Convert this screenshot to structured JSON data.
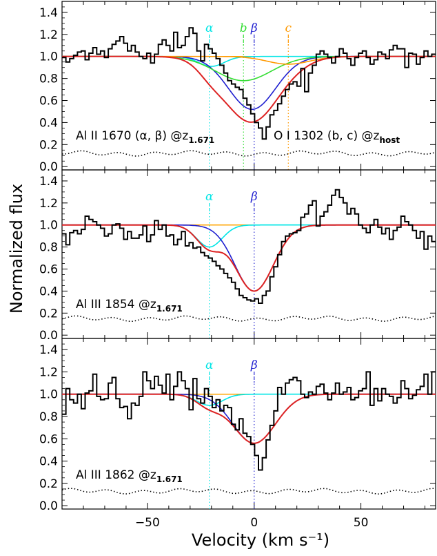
{
  "chart_data": {
    "type": "line",
    "xlabel": "Velocity (km s⁻¹)",
    "ylabel": "Normalized flux",
    "xlim": [
      -90,
      85
    ],
    "x_ticks": [
      -50,
      0,
      50
    ],
    "y_ticks": [
      0.0,
      0.2,
      0.4,
      0.6,
      0.8,
      1.0,
      1.2,
      1.4
    ],
    "colors": {
      "data": "#000000",
      "continuum": "#ffa500",
      "total_fit": "#dd2222",
      "alpha": "#00e5e5",
      "beta": "#1f1fd0",
      "b": "#33dd33",
      "c": "#ff9900"
    },
    "panels": [
      {
        "ylim": [
          -0.03,
          1.5
        ],
        "label_left": {
          "ion": "Al II 1670",
          "comps": "(α, β)",
          "at": "@z",
          "sub": "1.671"
        },
        "label_right": {
          "ion": "O I 1302",
          "comps": "(b, c)",
          "at": "@z",
          "sub": "host"
        },
        "markers": [
          {
            "name": "α",
            "v": -21,
            "color": "#00e5e5"
          },
          {
            "name": "b",
            "v": -5,
            "color": "#33dd33"
          },
          {
            "name": "β",
            "v": 0,
            "color": "#1f1fd0"
          },
          {
            "name": "c",
            "v": 16,
            "color": "#ff9900"
          }
        ],
        "components": [
          {
            "name": "alpha",
            "center": -20,
            "sigma": 6,
            "depth": 0.09,
            "color": "#00e5e5"
          },
          {
            "name": "beta",
            "center": -1,
            "sigma": 11,
            "depth": 0.48,
            "color": "#1f1fd0"
          },
          {
            "name": "b",
            "center": -5,
            "sigma": 13,
            "depth": 0.22,
            "color": "#33dd33"
          },
          {
            "name": "c",
            "center": 16,
            "sigma": 10,
            "depth": 0.07,
            "color": "#ff9900"
          }
        ],
        "flux": [
          0.99,
          0.95,
          0.98,
          1.01,
          1.04,
          1.05,
          0.97,
          1.03,
          1.08,
          1.02,
          1.05,
          0.99,
          1.07,
          1.11,
          1.14,
          1.18,
          1.12,
          1.05,
          1.1,
          1.04,
          1.0,
          0.98,
          1.03,
          0.94,
          1.02,
          1.11,
          1.15,
          1.1,
          1.05,
          1.22,
          1.08,
          1.1,
          1.18,
          1.26,
          1.21,
          1.05,
          0.96,
          1.11,
          1.07,
          1.03,
          0.98,
          0.92,
          0.85,
          0.78,
          0.75,
          0.72,
          0.7,
          0.62,
          0.56,
          0.48,
          0.4,
          0.35,
          0.25,
          0.36,
          0.47,
          0.51,
          0.57,
          0.64,
          0.7,
          0.75,
          0.77,
          0.73,
          0.89,
          0.68,
          0.85,
          0.92,
          1.02,
          1.05,
          1.02,
          0.99,
          0.94,
          1.0,
          1.07,
          1.03,
          0.98,
          0.92,
          0.99,
          1.03,
          1.05,
          0.99,
          0.93,
          0.97,
          1.04,
          1.02,
          0.98,
          1.06,
          1.1,
          1.07,
          1.07,
          0.9,
          1.03,
          1.02,
          0.93,
          0.99,
          1.05,
          1.0,
          1.02
        ],
        "noise": 0.12
      },
      {
        "ylim": [
          -0.03,
          1.5
        ],
        "label_left": {
          "ion": "Al III 1854",
          "comps": "",
          "at": "@z",
          "sub": "1.671"
        },
        "markers": [
          {
            "name": "α",
            "v": -21,
            "color": "#00e5e5"
          },
          {
            "name": "β",
            "v": 0,
            "color": "#1f1fd0"
          }
        ],
        "components": [
          {
            "name": "alpha",
            "center": -21,
            "sigma": 6,
            "depth": 0.2,
            "color": "#00e5e5"
          },
          {
            "name": "beta",
            "center": 0,
            "sigma": 9,
            "depth": 0.6,
            "color": "#1f1fd0"
          }
        ],
        "flux": [
          0.92,
          0.82,
          0.93,
          0.95,
          0.92,
          0.96,
          1.08,
          1.05,
          1.03,
          1.0,
          0.97,
          0.9,
          0.92,
          1.0,
          1.01,
          0.97,
          0.87,
          0.94,
          0.88,
          0.88,
          0.91,
          0.99,
          0.85,
          0.91,
          1.04,
          0.96,
          1.0,
          0.9,
          0.91,
          0.82,
          0.87,
          0.94,
          0.81,
          0.84,
          0.79,
          0.8,
          0.75,
          0.72,
          0.7,
          0.67,
          0.63,
          0.6,
          0.56,
          0.52,
          0.48,
          0.42,
          0.36,
          0.34,
          0.32,
          0.31,
          0.33,
          0.29,
          0.36,
          0.4,
          0.53,
          0.62,
          0.73,
          0.85,
          0.9,
          0.92,
          0.93,
          0.95,
          1.07,
          1.1,
          1.18,
          1.22,
          0.99,
          1.08,
          1.12,
          1.18,
          1.27,
          1.32,
          1.25,
          1.2,
          1.1,
          1.15,
          1.1,
          1.0,
          0.97,
          0.93,
          1.0,
          1.05,
          0.98,
          0.92,
          0.97,
          0.87,
          0.95,
          0.98,
          1.08,
          1.03,
          1.0,
          0.95,
          0.88,
          0.94,
          0.78,
          0.9,
          0.85
        ],
        "noise": 0.15
      },
      {
        "ylim": [
          -0.03,
          1.5
        ],
        "label_left": {
          "ion": "Al III 1862",
          "comps": "",
          "at": "@z",
          "sub": "1.671"
        },
        "markers": [
          {
            "name": "α",
            "v": -21,
            "color": "#00e5e5"
          },
          {
            "name": "β",
            "v": 0,
            "color": "#1f1fd0"
          }
        ],
        "components": [
          {
            "name": "alpha",
            "center": -21,
            "sigma": 6,
            "depth": 0.1,
            "color": "#00e5e5"
          },
          {
            "name": "beta",
            "center": 0,
            "sigma": 10,
            "depth": 0.44,
            "color": "#1f1fd0"
          }
        ],
        "flux": [
          0.82,
          1.05,
          0.95,
          0.92,
          1.0,
          0.87,
          1.01,
          1.03,
          1.18,
          0.98,
          0.95,
          0.96,
          1.1,
          1.15,
          0.96,
          0.88,
          0.89,
          0.78,
          0.92,
          0.9,
          0.98,
          1.2,
          1.12,
          1.05,
          1.16,
          1.08,
          1.01,
          1.18,
          0.95,
          1.07,
          1.2,
          1.12,
          1.05,
          0.86,
          1.14,
          0.96,
          0.92,
          1.05,
          0.98,
          0.88,
          0.95,
          0.85,
          0.9,
          0.88,
          0.73,
          0.68,
          0.78,
          0.65,
          0.62,
          0.55,
          0.45,
          0.32,
          0.43,
          0.59,
          0.72,
          0.85,
          1.06,
          1.0,
          1.1,
          1.13,
          1.15,
          1.12,
          1.0,
          0.97,
          1.02,
          1.0,
          1.07,
          1.09,
          1.01,
          0.95,
          1.01,
          1.1,
          1.0,
          1.02,
          1.06,
          0.95,
          0.97,
          1.03,
          1.05,
          1.2,
          0.9,
          1.05,
          0.94,
          1.05,
          1.0,
          0.98,
          0.92,
          0.97,
          1.12,
          1.05,
          0.96,
          0.99,
          1.04,
          1.07,
          1.18,
          1.0,
          1.2
        ],
        "noise": 0.13
      }
    ]
  }
}
